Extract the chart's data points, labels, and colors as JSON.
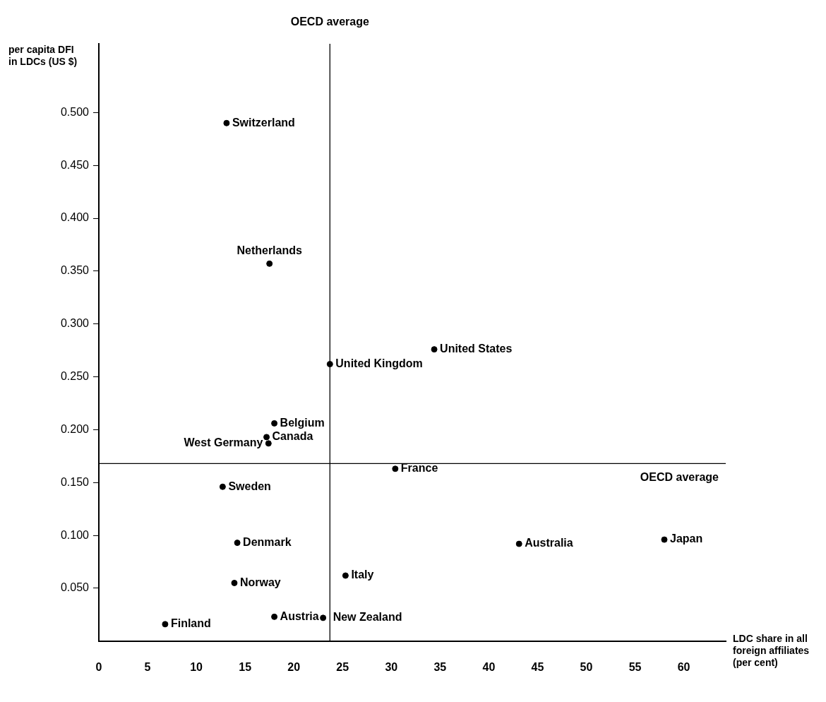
{
  "chart_data": {
    "type": "scatter",
    "xlabel": "LDC share in all foreign affiliates (per cent)",
    "ylabel": "per capita DFI in LDCs (US $)",
    "series": [
      {
        "color": "#000000",
        "x": [
          13.1,
          17.5,
          23.7,
          34.4,
          18.0,
          17.2,
          17.4,
          30.4,
          12.7,
          14.2,
          43.1,
          58.0,
          25.3,
          13.9,
          6.8,
          18.0,
          23.0
        ],
        "values": [
          0.49,
          0.357,
          0.262,
          0.276,
          0.206,
          0.193,
          0.187,
          0.163,
          0.146,
          0.093,
          0.092,
          0.096,
          0.062,
          0.055,
          0.016,
          0.023,
          0.022
        ]
      }
    ],
    "annotations": [
      {
        "text": "Switzerland",
        "x": 13.1,
        "y": 0.49
      },
      {
        "text": "Netherlands",
        "x": 17.5,
        "y": 0.357
      },
      {
        "text": "United Kingdom",
        "x": 23.7,
        "y": 0.262
      },
      {
        "text": "United States",
        "x": 34.4,
        "y": 0.276
      },
      {
        "text": "Belgium",
        "x": 18.0,
        "y": 0.206
      },
      {
        "text": "Canada",
        "x": 17.2,
        "y": 0.193
      },
      {
        "text": "West Germany",
        "x": 17.4,
        "y": 0.187
      },
      {
        "text": "France",
        "x": 30.4,
        "y": 0.163
      },
      {
        "text": "Sweden",
        "x": 12.7,
        "y": 0.146
      },
      {
        "text": "Denmark",
        "x": 14.2,
        "y": 0.093
      },
      {
        "text": "Australia",
        "x": 43.1,
        "y": 0.092
      },
      {
        "text": "Japan",
        "x": 58.0,
        "y": 0.096
      },
      {
        "text": "Italy",
        "x": 25.3,
        "y": 0.062
      },
      {
        "text": "Norway",
        "x": 13.9,
        "y": 0.055
      },
      {
        "text": "Finland",
        "x": 6.8,
        "y": 0.016
      },
      {
        "text": "Austria",
        "x": 18.0,
        "y": 0.023
      },
      {
        "text": "New Zealand",
        "x": 23.0,
        "y": 0.022
      }
    ],
    "ref_lines": [
      {
        "axis": "x",
        "value": 23.7,
        "label": "OECD average",
        "color": "#000000"
      },
      {
        "axis": "y",
        "value": 0.168,
        "label": "OECD average",
        "color": "#000000"
      }
    ],
    "xlim": [
      0,
      64.3
    ],
    "ylim": [
      0,
      0.565
    ],
    "xticks": [
      0,
      5,
      10,
      15,
      20,
      25,
      30,
      35,
      40,
      45,
      50,
      55,
      60
    ],
    "yticks": [
      {
        "value": 0.05,
        "label": "0.050"
      },
      {
        "value": 0.1,
        "label": "0.100"
      },
      {
        "value": 0.15,
        "label": "0.150"
      },
      {
        "value": 0.2,
        "label": "0.200"
      },
      {
        "value": 0.25,
        "label": "0.250"
      },
      {
        "value": 0.3,
        "label": "0.300"
      },
      {
        "value": 0.35,
        "label": "0.350"
      },
      {
        "value": 0.4,
        "label": "0.400"
      },
      {
        "value": 0.45,
        "label": "0.450"
      },
      {
        "value": 0.5,
        "label": "0.500"
      }
    ],
    "grid": false,
    "legend": false,
    "marker": "circle"
  }
}
